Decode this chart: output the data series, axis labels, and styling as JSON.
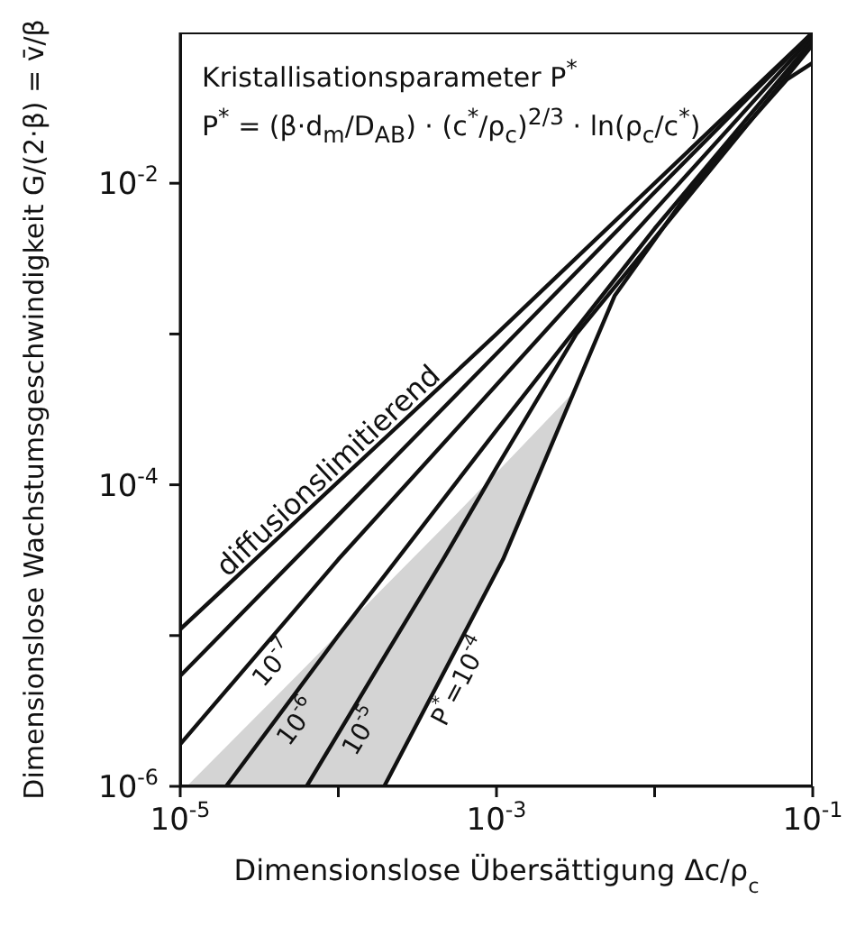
{
  "chart_data": {
    "type": "line",
    "xlabel": "Dimensionslose Übersättigung Δc/ρ$_{c}$",
    "ylabel": "Dimensionslose Wachstumsgeschwindigkeit G/(2·β) = v̄/β",
    "annotations": [
      "Kristallisationsparameter P$^{*}$",
      "P$^{*}$ = (β·d$_{m}$/D$_{AB}$) · (c$^{*}$/ρ$_{c}$)$^{2/3}$ · ln(ρ$_{c}$/c$^{*}$)"
    ],
    "log": "xy",
    "xlim": [
      1e-05,
      0.1
    ],
    "ylim": [
      1e-06,
      0.1
    ],
    "xticks": [
      {
        "value": 1e-05,
        "label": "10$^{-5}$"
      },
      {
        "value": 0.0001,
        "label": null
      },
      {
        "value": 0.001,
        "label": "10$^{-3}$"
      },
      {
        "value": 0.01,
        "label": null
      },
      {
        "value": 0.1,
        "label": "10$^{-1}$"
      }
    ],
    "yticks": [
      {
        "value": 1e-06,
        "label": "10$^{-6}$"
      },
      {
        "value": 1e-05,
        "label": null
      },
      {
        "value": 0.0001,
        "label": "10$^{-4}$"
      },
      {
        "value": 0.001,
        "label": null
      },
      {
        "value": 0.01,
        "label": "10$^{-2}$"
      }
    ],
    "series": [
      {
        "name": "diffusionslimitierend",
        "color": "#111111",
        "x": [
          1e-05,
          0.001,
          0.1
        ],
        "values": [
          1.1e-05,
          0.001,
          0.1
        ]
      },
      {
        "color": "#111111",
        "x": [
          1e-05,
          0.0001,
          0.001,
          0.01,
          0.1
        ],
        "values": [
          5.4e-06,
          6.3e-05,
          0.00074,
          0.0087,
          0.1
        ]
      },
      {
        "name": "10$^{-7}$",
        "color": "#111111",
        "x": [
          1e-05,
          0.0001,
          0.001,
          0.01,
          0.1
        ],
        "values": [
          1.9e-06,
          3.2e-05,
          0.00046,
          0.0066,
          0.095
        ]
      },
      {
        "name": "10$^{-6}$",
        "color": "#111111",
        "x": [
          1.95e-05,
          0.0001,
          0.001,
          0.01,
          0.1
        ],
        "values": [
          1e-06,
          1e-05,
          0.00023,
          0.005,
          0.089
        ]
      },
      {
        "name": "10$^{-5}$",
        "color": "#111111",
        "x": [
          1.1e-05,
          6.3e-05,
          0.000195,
          0.00046,
          0.001,
          0.0032,
          0.1
        ],
        "values": [
          null,
          1e-06,
          7.2e-06,
          3.2e-05,
          0.00013,
          0.001,
          0.083
        ],
        "lower": [
          1e-06,
          1e-06,
          1e-06,
          5.5e-06,
          2.6e-05,
          0.00043,
          null
        ],
        "upper": [
          1e-06,
          6.3e-06,
          2.1e-05,
          5.2e-05,
          0.00012,
          0.00043,
          null
        ]
      },
      {
        "name": "P$^{*}$=10$^{-4}$",
        "color": "#111111",
        "x": [
          0.000195,
          0.0011,
          0.0056,
          0.018,
          0.069,
          0.1
        ],
        "values": [
          1e-06,
          3.2e-05,
          0.0018,
          0.01,
          0.049,
          0.063
        ]
      }
    ]
  }
}
